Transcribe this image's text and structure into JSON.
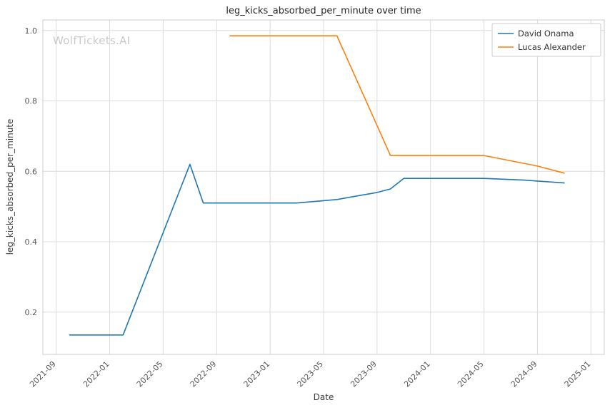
{
  "chart_data": {
    "type": "line",
    "title": "leg_kicks_absorbed_per_minute over time",
    "xlabel": "Date",
    "ylabel": "leg_kicks_absorbed_per_minute",
    "watermark": "WolfTickets.AI",
    "grid": true,
    "legend_position": "top-right",
    "x_ticks": [
      "2021-09",
      "2022-01",
      "2022-05",
      "2022-09",
      "2023-01",
      "2023-05",
      "2023-09",
      "2024-01",
      "2024-05",
      "2024-09",
      "2025-01"
    ],
    "y_ticks": [
      0.2,
      0.4,
      0.6,
      0.8,
      1.0
    ],
    "xlim": [
      "2021-08",
      "2025-02"
    ],
    "ylim": [
      0.08,
      1.03
    ],
    "series": [
      {
        "name": "David Onama",
        "color": "#1f77b4",
        "points": [
          {
            "x": "2021-10",
            "y": 0.135
          },
          {
            "x": "2022-02",
            "y": 0.135
          },
          {
            "x": "2022-07",
            "y": 0.62
          },
          {
            "x": "2022-08",
            "y": 0.51
          },
          {
            "x": "2023-03",
            "y": 0.51
          },
          {
            "x": "2023-06",
            "y": 0.52
          },
          {
            "x": "2023-09",
            "y": 0.54
          },
          {
            "x": "2023-10",
            "y": 0.55
          },
          {
            "x": "2023-11",
            "y": 0.58
          },
          {
            "x": "2024-05",
            "y": 0.58
          },
          {
            "x": "2024-08",
            "y": 0.575
          },
          {
            "x": "2024-11",
            "y": 0.567
          }
        ]
      },
      {
        "name": "Lucas Alexander",
        "color": "#ff7f0e",
        "points": [
          {
            "x": "2022-10",
            "y": 0.985
          },
          {
            "x": "2023-06",
            "y": 0.985
          },
          {
            "x": "2023-10",
            "y": 0.645
          },
          {
            "x": "2024-05",
            "y": 0.645
          },
          {
            "x": "2024-09",
            "y": 0.615
          },
          {
            "x": "2024-11",
            "y": 0.595
          }
        ]
      }
    ]
  },
  "colors": {
    "grid": "#dcdcdc",
    "frame": "#cccccc",
    "tick_label": "#555555",
    "legend_text": "#333333"
  }
}
